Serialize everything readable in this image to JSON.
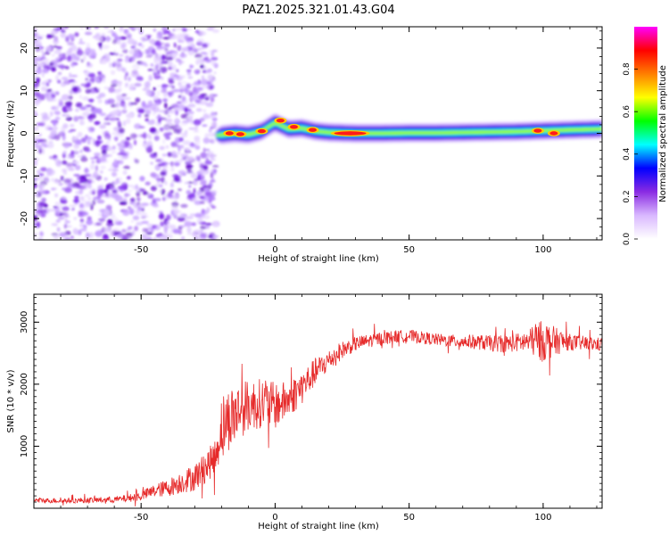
{
  "title": "PAZ1.2025.321.01.43.G04",
  "chart_data": [
    {
      "type": "heatmap",
      "title": "PAZ1.2025.321.01.43.G04",
      "xlabel": "Height of straight line (km)",
      "ylabel": "Frequency (Hz)",
      "xlim": [
        -90,
        122
      ],
      "ylim": [
        -25,
        25
      ],
      "xticks": [
        -50,
        0,
        50,
        100
      ],
      "yticks": [
        -20,
        -10,
        0,
        10,
        20
      ],
      "noise_region_x": [
        -90,
        -22
      ],
      "signal_band_x": [
        -22,
        122
      ],
      "signal_ridge": {
        "x": [
          -22,
          -15,
          -10,
          -5,
          0,
          5,
          10,
          15,
          20,
          30,
          40,
          50,
          60,
          70,
          80,
          90,
          100,
          110,
          122
        ],
        "frequency_hz": [
          -0.5,
          0.0,
          -0.3,
          0.5,
          2.5,
          1.0,
          1.2,
          0.5,
          0.2,
          0.0,
          0.0,
          0.1,
          0.1,
          0.2,
          0.3,
          0.4,
          0.6,
          0.8,
          1.0
        ]
      },
      "high_amplitude_spots": [
        {
          "x": -17,
          "frequency_hz": 0.0
        },
        {
          "x": -13,
          "frequency_hz": -0.2
        },
        {
          "x": -5,
          "frequency_hz": 0.5
        },
        {
          "x": 2,
          "frequency_hz": 3.0
        },
        {
          "x": 7,
          "frequency_hz": 1.5
        },
        {
          "x": 14,
          "frequency_hz": 0.8
        },
        {
          "x": 28,
          "frequency_hz": 0.0
        },
        {
          "x": 98,
          "frequency_hz": 0.6
        },
        {
          "x": 104,
          "frequency_hz": 0.0
        }
      ],
      "colorbar": {
        "label": "Normalized spectral amplitude",
        "range": [
          0,
          1
        ],
        "ticks": [
          "0.0",
          "0.2",
          "0.4",
          "0.6",
          "0.8"
        ],
        "tick_values": [
          0.0,
          0.2,
          0.4,
          0.6,
          0.8
        ],
        "colormap": [
          "#ffffff",
          "#d9b8ff",
          "#8a2be2",
          "#0000ff",
          "#00ffff",
          "#00ff00",
          "#ffff00",
          "#ff7f00",
          "#ff0000",
          "#ff00ff"
        ]
      }
    },
    {
      "type": "line",
      "xlabel": "Height of straight line (km)",
      "ylabel": "SNR (10 * v/v)",
      "xlim": [
        -90,
        122
      ],
      "ylim": [
        0,
        3450
      ],
      "xticks": [
        -50,
        0,
        50,
        100
      ],
      "yticks": [
        1000,
        2000,
        3000
      ],
      "color": "#e62b2b",
      "series": [
        {
          "name": "SNR",
          "x": [
            -90,
            -80,
            -70,
            -60,
            -55,
            -50,
            -45,
            -40,
            -35,
            -30,
            -25,
            -22,
            -20,
            -18,
            -15,
            -10,
            -5,
            0,
            5,
            10,
            15,
            20,
            25,
            30,
            35,
            40,
            45,
            50,
            55,
            60,
            65,
            70,
            75,
            80,
            85,
            90,
            95,
            100,
            105,
            110,
            115,
            122
          ],
          "values": [
            130,
            120,
            130,
            140,
            160,
            200,
            280,
            330,
            420,
            500,
            700,
            850,
            1350,
            1400,
            1550,
            1650,
            1700,
            1650,
            1750,
            1950,
            2200,
            2380,
            2550,
            2650,
            2700,
            2740,
            2770,
            2780,
            2750,
            2720,
            2700,
            2690,
            2680,
            2660,
            2650,
            2670,
            2690,
            2700,
            2690,
            2680,
            2660,
            2640
          ],
          "noise_amplitude": [
            40,
            40,
            45,
            50,
            60,
            80,
            110,
            140,
            180,
            220,
            260,
            280,
            500,
            520,
            480,
            420,
            400,
            380,
            300,
            280,
            220,
            180,
            140,
            120,
            110,
            110,
            100,
            100,
            100,
            100,
            100,
            110,
            120,
            130,
            140,
            150,
            200,
            350,
            220,
            130,
            120,
            110
          ]
        }
      ]
    }
  ]
}
